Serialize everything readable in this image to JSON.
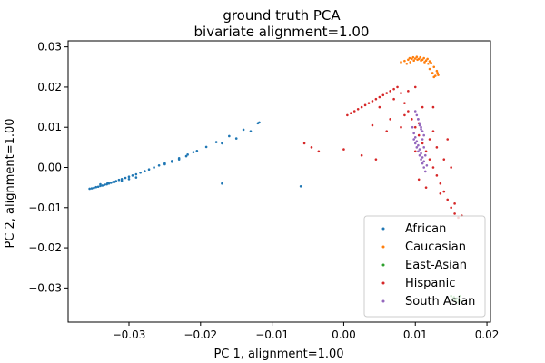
{
  "chart_data": {
    "type": "scatter",
    "title_line1": "ground truth PCA",
    "title_line2": "bivariate alignment=1.00",
    "xlabel": "PC 1, alignment=1.00",
    "ylabel": "PC 2, alignment=1.00",
    "xlim": [
      -0.0385,
      0.0205
    ],
    "ylim": [
      -0.0385,
      0.0315
    ],
    "xticks": [
      -0.03,
      -0.02,
      -0.01,
      0.0,
      0.01,
      0.02
    ],
    "xtick_labels": [
      "−0.03",
      "−0.02",
      "−0.01",
      "0.00",
      "0.01",
      "0.02"
    ],
    "yticks": [
      -0.03,
      -0.02,
      -0.01,
      0.0,
      0.01,
      0.02,
      0.03
    ],
    "ytick_labels": [
      "−0.03",
      "−0.02",
      "−0.01",
      "0.00",
      "0.01",
      "0.02",
      "0.03"
    ],
    "grid": false,
    "legend_position": "lower-right",
    "series": [
      {
        "name": "African",
        "color": "#1f77b4",
        "x": [
          -0.0355,
          -0.0352,
          -0.0349,
          -0.0346,
          -0.0343,
          -0.034,
          -0.0337,
          -0.0334,
          -0.0331,
          -0.0328,
          -0.0325,
          -0.0322,
          -0.0318,
          -0.0314,
          -0.031,
          -0.0305,
          -0.03,
          -0.0295,
          -0.029,
          -0.0284,
          -0.0278,
          -0.0272,
          -0.0265,
          -0.0258,
          -0.025,
          -0.024,
          -0.023,
          -0.0218,
          -0.0205,
          -0.0192,
          -0.0178,
          -0.016,
          -0.014,
          -0.012,
          -0.034,
          -0.033,
          -0.032,
          -0.031,
          -0.03,
          -0.029,
          -0.025,
          -0.024,
          -0.023,
          -0.022,
          -0.021,
          -0.017,
          -0.015,
          -0.013,
          -0.0118,
          -0.017,
          -0.006
        ],
        "y": [
          -0.0053,
          -0.0052,
          -0.0051,
          -0.0049,
          -0.0048,
          -0.0046,
          -0.0045,
          -0.0043,
          -0.0042,
          -0.004,
          -0.0038,
          -0.0036,
          -0.0034,
          -0.0031,
          -0.0029,
          -0.0026,
          -0.0023,
          -0.002,
          -0.0017,
          -0.0013,
          -0.0009,
          -0.0005,
          0.0,
          0.0005,
          0.001,
          0.0016,
          0.0023,
          0.0032,
          0.0041,
          0.0051,
          0.0063,
          0.0078,
          0.0094,
          0.011,
          -0.0042,
          -0.004,
          -0.0036,
          -0.0033,
          -0.0029,
          -0.0025,
          0.0008,
          0.0014,
          0.002,
          0.0028,
          0.0038,
          0.006,
          0.0072,
          0.009,
          0.0112,
          -0.004,
          -0.0047
        ]
      },
      {
        "name": "Caucasian",
        "color": "#ff7f0e",
        "x": [
          0.008,
          0.0085,
          0.009,
          0.0095,
          0.01,
          0.0105,
          0.011,
          0.0115,
          0.012,
          0.0088,
          0.0093,
          0.0098,
          0.0103,
          0.0108,
          0.0113,
          0.0118,
          0.0092,
          0.0097,
          0.0102,
          0.0107,
          0.0112,
          0.0117,
          0.0122,
          0.0126,
          0.013,
          0.0132,
          0.0128,
          0.0124,
          0.012,
          0.0126,
          0.0131
        ],
        "y": [
          0.0262,
          0.0265,
          0.0268,
          0.027,
          0.0271,
          0.027,
          0.0268,
          0.0266,
          0.0264,
          0.0258,
          0.0262,
          0.0266,
          0.0268,
          0.0266,
          0.0262,
          0.0258,
          0.0272,
          0.0274,
          0.0275,
          0.0274,
          0.0272,
          0.027,
          0.026,
          0.025,
          0.024,
          0.023,
          0.0228,
          0.0235,
          0.0245,
          0.0225,
          0.0235
        ]
      },
      {
        "name": "East-Asian",
        "color": "#2ca02c",
        "x": [
          0.015,
          0.0154,
          0.0158,
          0.0161,
          0.0164,
          0.0156,
          0.016,
          0.0152,
          0.0162
        ],
        "y": [
          -0.032,
          -0.0323,
          -0.0326,
          -0.033,
          -0.0333,
          -0.0331,
          -0.0336,
          -0.0328,
          -0.032
        ]
      },
      {
        "name": "Hispanic",
        "color": "#d62728",
        "x": [
          0.0005,
          0.001,
          0.0015,
          0.002,
          0.0025,
          0.003,
          0.0035,
          0.004,
          0.0045,
          0.005,
          0.0055,
          0.006,
          0.0065,
          0.007,
          0.0075,
          0.008,
          0.0085,
          0.009,
          0.0095,
          0.01,
          0.0105,
          0.011,
          0.0115,
          0.012,
          0.0125,
          0.013,
          0.0135,
          0.014,
          0.0145,
          0.015,
          0.0155,
          0.016,
          0.0165,
          0.005,
          0.007,
          0.009,
          0.011,
          0.0065,
          0.0085,
          0.0105,
          0.0125,
          0.0145,
          0.004,
          0.006,
          0.008,
          0.01,
          0.012,
          0.013,
          0.014,
          0.015,
          -0.0055,
          -0.0045,
          -0.0035,
          0.0,
          0.0025,
          0.0045,
          0.0105,
          0.0115,
          0.0135,
          0.0155,
          0.0125,
          0.01
        ],
        "y": [
          0.013,
          0.0135,
          0.014,
          0.0145,
          0.015,
          0.0155,
          0.016,
          0.0165,
          0.017,
          0.0175,
          0.018,
          0.0185,
          0.019,
          0.0195,
          0.02,
          0.0185,
          0.016,
          0.014,
          0.012,
          0.01,
          0.008,
          0.006,
          0.004,
          0.002,
          0.0,
          -0.002,
          -0.004,
          -0.006,
          -0.008,
          -0.01,
          -0.0115,
          -0.0125,
          -0.012,
          0.015,
          0.017,
          0.019,
          0.015,
          0.012,
          0.013,
          0.011,
          0.009,
          0.007,
          0.0105,
          0.009,
          0.01,
          0.004,
          0.007,
          0.005,
          0.002,
          0.0,
          0.006,
          0.005,
          0.004,
          0.0045,
          0.003,
          0.002,
          -0.003,
          -0.005,
          -0.0065,
          -0.009,
          0.015,
          0.02
        ]
      },
      {
        "name": "South Asian",
        "color": "#9467bd",
        "x": [
          0.01,
          0.0102,
          0.0104,
          0.0106,
          0.0108,
          0.011,
          0.0112,
          0.0098,
          0.01,
          0.0102,
          0.0104,
          0.0106,
          0.0108,
          0.011,
          0.0112,
          0.0114,
          0.0096,
          0.0098,
          0.01,
          0.0102,
          0.0104,
          0.0106,
          0.0108,
          0.011,
          0.0112,
          0.0104,
          0.0106,
          0.0108,
          0.011,
          0.0112,
          0.0114,
          0.0116
        ],
        "y": [
          0.014,
          0.013,
          0.012,
          0.011,
          0.01,
          0.009,
          0.008,
          0.007,
          0.006,
          0.005,
          0.004,
          0.003,
          0.002,
          0.001,
          0.0,
          -0.001,
          0.01,
          0.0085,
          0.0075,
          0.0065,
          0.0055,
          0.0045,
          0.0035,
          0.0025,
          0.0015,
          0.012,
          0.0105,
          0.0095,
          0.007,
          0.005,
          0.003,
          0.0005
        ]
      }
    ]
  }
}
